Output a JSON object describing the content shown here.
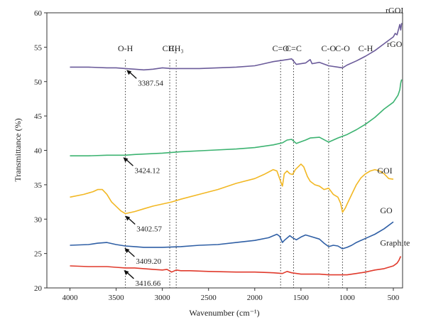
{
  "chart_data": {
    "type": "line",
    "title": "",
    "xlabel": "Wavenumber (cm⁻¹)",
    "ylabel": "Transmittance (%)",
    "xlim": [
      4250,
      400
    ],
    "ylim": [
      20,
      60
    ],
    "x_reversed": true,
    "xticks": [
      4000,
      3500,
      3000,
      2500,
      2000,
      1500,
      1000,
      500
    ],
    "yticks": [
      20,
      25,
      30,
      35,
      40,
      45,
      50,
      55,
      60
    ],
    "grid": false,
    "legend": "none",
    "reference_lines": [
      {
        "x": 3400,
        "label": "O-H"
      },
      {
        "x": 2920,
        "label": "CH₂"
      },
      {
        "x": 2850,
        "label": "CH₃"
      },
      {
        "x": 1720,
        "label": "C=O"
      },
      {
        "x": 1580,
        "label": "C=C"
      },
      {
        "x": 1200,
        "label": "C-O"
      },
      {
        "x": 1050,
        "label": "C-O"
      },
      {
        "x": 800,
        "label": "C-H"
      }
    ],
    "annotations": [
      {
        "text": "3387.54",
        "x": 3387.54,
        "y": 52.0,
        "series": "rGOI"
      },
      {
        "text": "3424.12",
        "x": 3424.12,
        "y": 39.3,
        "series": "rGO"
      },
      {
        "text": "3402.57",
        "x": 3402.57,
        "y": 30.8,
        "series": "GOI"
      },
      {
        "text": "3409.20",
        "x": 3409.2,
        "y": 26.1,
        "series": "GO"
      },
      {
        "text": "3416.66",
        "x": 3416.66,
        "y": 22.9,
        "series": "Graphite"
      }
    ],
    "series": [
      {
        "name": "rGOI",
        "color": "#6b5b9a",
        "x": [
          4000,
          3800,
          3600,
          3500,
          3400,
          3300,
          3200,
          3100,
          3000,
          2900,
          2800,
          2600,
          2400,
          2200,
          2000,
          1900,
          1800,
          1700,
          1650,
          1600,
          1550,
          1450,
          1400,
          1380,
          1300,
          1200,
          1100,
          1050,
          1000,
          900,
          800,
          700,
          600,
          500,
          480,
          460,
          440,
          430,
          420,
          410
        ],
        "values": [
          52.1,
          52.1,
          52.0,
          52.0,
          51.9,
          51.8,
          51.7,
          51.8,
          52.0,
          51.9,
          51.9,
          51.9,
          52.0,
          52.1,
          52.3,
          52.6,
          52.9,
          53.1,
          53.2,
          53.3,
          52.5,
          52.7,
          53.2,
          52.6,
          52.8,
          52.3,
          52.1,
          52.0,
          52.4,
          53.0,
          53.7,
          54.5,
          55.5,
          56.5,
          57.0,
          56.8,
          57.8,
          58.3,
          57.5,
          58.5
        ]
      },
      {
        "name": "rGO",
        "color": "#3cb371",
        "x": [
          4000,
          3800,
          3600,
          3500,
          3400,
          3300,
          3000,
          2800,
          2500,
          2200,
          2000,
          1800,
          1700,
          1650,
          1600,
          1550,
          1450,
          1400,
          1300,
          1200,
          1100,
          1000,
          900,
          800,
          700,
          600,
          500,
          450,
          430,
          420,
          410
        ],
        "values": [
          39.2,
          39.2,
          39.3,
          39.3,
          39.3,
          39.4,
          39.6,
          39.8,
          40.0,
          40.2,
          40.4,
          40.8,
          41.1,
          41.5,
          41.6,
          41.0,
          41.5,
          41.8,
          41.9,
          41.2,
          41.8,
          42.3,
          43.0,
          43.8,
          44.8,
          46.0,
          47.0,
          48.0,
          48.8,
          49.8,
          50.3
        ]
      },
      {
        "name": "GOI",
        "color": "#f2b824",
        "x": [
          4000,
          3850,
          3750,
          3700,
          3650,
          3600,
          3550,
          3450,
          3400,
          3300,
          3200,
          3100,
          3000,
          2900,
          2800,
          2600,
          2400,
          2200,
          2000,
          1900,
          1800,
          1760,
          1720,
          1700,
          1680,
          1650,
          1620,
          1590,
          1560,
          1500,
          1470,
          1430,
          1400,
          1350,
          1300,
          1250,
          1200,
          1150,
          1100,
          1070,
          1050,
          1020,
          1000,
          950,
          900,
          850,
          800,
          750,
          700,
          650,
          600,
          550,
          500
        ],
        "values": [
          33.2,
          33.6,
          34.0,
          34.3,
          34.3,
          33.6,
          32.5,
          31.2,
          30.8,
          31.1,
          31.5,
          31.9,
          32.2,
          32.5,
          32.9,
          33.6,
          34.3,
          35.2,
          35.9,
          36.5,
          37.2,
          37.0,
          35.5,
          34.8,
          36.6,
          37.0,
          36.6,
          36.5,
          37.2,
          38.0,
          37.6,
          36.2,
          35.5,
          35.0,
          34.8,
          34.3,
          34.5,
          33.6,
          33.2,
          32.3,
          31.0,
          31.6,
          32.2,
          33.6,
          35.0,
          36.0,
          36.6,
          37.0,
          37.2,
          37.0,
          36.6,
          35.9,
          35.8
        ]
      },
      {
        "name": "GO",
        "color": "#2f5fa5",
        "x": [
          4000,
          3800,
          3700,
          3600,
          3500,
          3400,
          3300,
          3200,
          3000,
          2800,
          2600,
          2400,
          2200,
          2000,
          1850,
          1760,
          1730,
          1700,
          1680,
          1620,
          1590,
          1550,
          1500,
          1450,
          1400,
          1300,
          1250,
          1200,
          1150,
          1100,
          1050,
          1000,
          950,
          900,
          800,
          700,
          600,
          500
        ],
        "values": [
          26.2,
          26.3,
          26.5,
          26.6,
          26.3,
          26.1,
          26.0,
          25.9,
          25.9,
          26.0,
          26.2,
          26.3,
          26.6,
          26.9,
          27.3,
          27.8,
          27.5,
          26.6,
          26.9,
          27.6,
          27.3,
          27.0,
          27.4,
          27.7,
          27.5,
          27.1,
          26.5,
          26.0,
          26.2,
          26.1,
          25.7,
          25.9,
          26.2,
          26.6,
          27.2,
          27.8,
          28.6,
          29.6
        ]
      },
      {
        "name": "Graphite",
        "color": "#e03a2c",
        "x": [
          4000,
          3800,
          3600,
          3500,
          3400,
          3300,
          3200,
          3100,
          3000,
          2950,
          2900,
          2850,
          2800,
          2700,
          2500,
          2200,
          2000,
          1800,
          1700,
          1650,
          1600,
          1500,
          1400,
          1300,
          1200,
          1100,
          1000,
          900,
          800,
          700,
          600,
          500,
          460,
          440,
          420
        ],
        "values": [
          23.2,
          23.1,
          23.1,
          23.0,
          22.9,
          22.9,
          22.8,
          22.7,
          22.6,
          22.7,
          22.3,
          22.6,
          22.5,
          22.5,
          22.4,
          22.3,
          22.3,
          22.2,
          22.1,
          22.4,
          22.2,
          22.0,
          22.0,
          22.0,
          21.9,
          21.9,
          21.9,
          22.1,
          22.3,
          22.6,
          22.8,
          23.2,
          23.6,
          24.0,
          24.6
        ]
      }
    ]
  }
}
